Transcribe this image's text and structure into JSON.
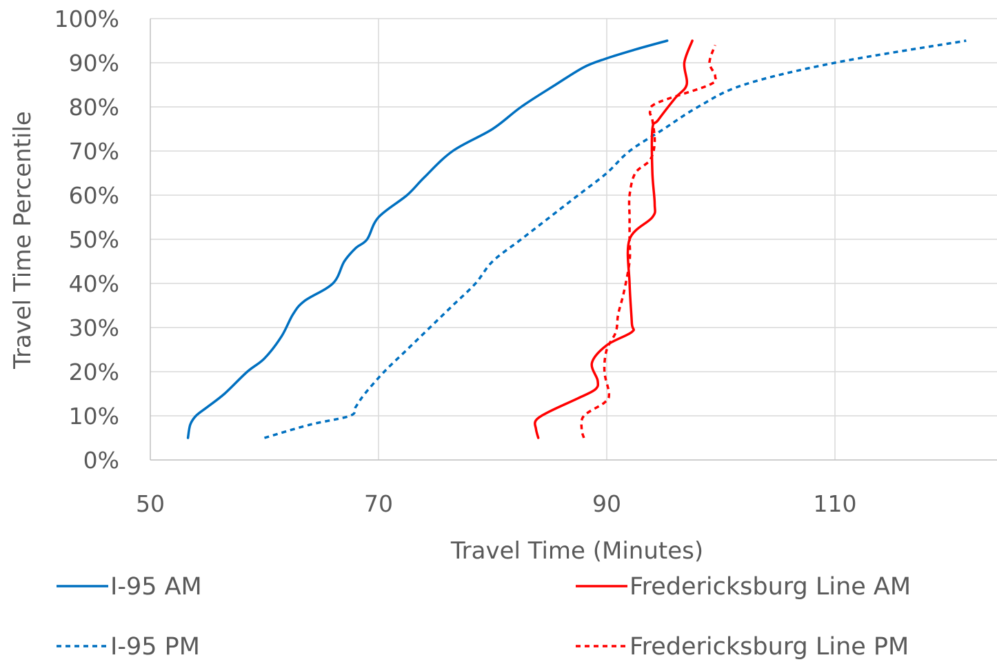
{
  "chart_data": {
    "type": "line",
    "xlabel": "Travel Time (Minutes)",
    "ylabel": "Travel Time Percentile",
    "xlim": [
      50,
      124
    ],
    "ylim": [
      0,
      1
    ],
    "x_ticks": [
      50,
      70,
      90,
      110
    ],
    "y_ticks": [
      0,
      0.1,
      0.2,
      0.3,
      0.4,
      0.5,
      0.6,
      0.7,
      0.8,
      0.9,
      1.0
    ],
    "x_tick_labels": [
      "50",
      "70",
      "90",
      "110"
    ],
    "y_tick_labels": [
      "0%",
      "10%",
      "20%",
      "30%",
      "40%",
      "50%",
      "60%",
      "70%",
      "80%",
      "90%",
      "100%"
    ],
    "grid": "vertical and horizontal",
    "legend_position": "bottom",
    "series": [
      {
        "name": "I-95 AM",
        "color": "#0070C0",
        "style": "solid",
        "points": [
          [
            53.3,
            0.05
          ],
          [
            53.5,
            0.08
          ],
          [
            54.0,
            0.1
          ],
          [
            55.0,
            0.12
          ],
          [
            56.5,
            0.15
          ],
          [
            58.5,
            0.2
          ],
          [
            60.0,
            0.23
          ],
          [
            61.5,
            0.28
          ],
          [
            62.5,
            0.33
          ],
          [
            63.5,
            0.36
          ],
          [
            66.0,
            0.4
          ],
          [
            67.0,
            0.45
          ],
          [
            68.0,
            0.48
          ],
          [
            69.0,
            0.5
          ],
          [
            70.0,
            0.55
          ],
          [
            72.5,
            0.6
          ],
          [
            74.0,
            0.64
          ],
          [
            76.5,
            0.7
          ],
          [
            80.0,
            0.75
          ],
          [
            82.5,
            0.8
          ],
          [
            85.5,
            0.85
          ],
          [
            88.0,
            0.89
          ],
          [
            90.0,
            0.91
          ],
          [
            92.5,
            0.93
          ],
          [
            95.3,
            0.95
          ]
        ]
      },
      {
        "name": "I-95 PM",
        "color": "#0070C0",
        "style": "dashed",
        "points": [
          [
            60.0,
            0.05
          ],
          [
            64.0,
            0.08
          ],
          [
            67.5,
            0.1
          ],
          [
            68.0,
            0.12
          ],
          [
            68.8,
            0.15
          ],
          [
            70.5,
            0.2
          ],
          [
            72.5,
            0.25
          ],
          [
            74.5,
            0.3
          ],
          [
            76.5,
            0.35
          ],
          [
            78.5,
            0.4
          ],
          [
            80.0,
            0.45
          ],
          [
            82.5,
            0.5
          ],
          [
            85.0,
            0.55
          ],
          [
            87.5,
            0.6
          ],
          [
            90.0,
            0.65
          ],
          [
            92.0,
            0.7
          ],
          [
            95.0,
            0.75
          ],
          [
            98.0,
            0.8
          ],
          [
            102.0,
            0.85
          ],
          [
            110.0,
            0.9
          ],
          [
            121.5,
            0.95
          ]
        ]
      },
      {
        "name": "Fredericksburg Line AM",
        "color": "#FF0000",
        "style": "solid",
        "points": [
          [
            84.0,
            0.05
          ],
          [
            83.8,
            0.07
          ],
          [
            83.8,
            0.09
          ],
          [
            85.0,
            0.11
          ],
          [
            87.5,
            0.14
          ],
          [
            89.0,
            0.16
          ],
          [
            89.2,
            0.18
          ],
          [
            88.7,
            0.22
          ],
          [
            90.0,
            0.26
          ],
          [
            92.2,
            0.29
          ],
          [
            92.2,
            0.31
          ],
          [
            92.0,
            0.4
          ],
          [
            92.0,
            0.5
          ],
          [
            94.0,
            0.55
          ],
          [
            94.2,
            0.58
          ],
          [
            94.0,
            0.65
          ],
          [
            94.0,
            0.75
          ],
          [
            94.5,
            0.77
          ],
          [
            96.0,
            0.82
          ],
          [
            97.0,
            0.85
          ],
          [
            96.8,
            0.9
          ],
          [
            97.5,
            0.95
          ]
        ]
      },
      {
        "name": "Fredericksburg Line PM",
        "color": "#FF0000",
        "style": "dashed",
        "points": [
          [
            88.0,
            0.05
          ],
          [
            87.8,
            0.07
          ],
          [
            88.0,
            0.1
          ],
          [
            89.8,
            0.13
          ],
          [
            90.2,
            0.15
          ],
          [
            89.8,
            0.2
          ],
          [
            90.0,
            0.25
          ],
          [
            90.8,
            0.29
          ],
          [
            91.0,
            0.33
          ],
          [
            91.5,
            0.38
          ],
          [
            92.0,
            0.45
          ],
          [
            92.0,
            0.5
          ],
          [
            92.0,
            0.55
          ],
          [
            92.0,
            0.6
          ],
          [
            92.5,
            0.65
          ],
          [
            93.8,
            0.68
          ],
          [
            94.2,
            0.72
          ],
          [
            94.0,
            0.77
          ],
          [
            93.8,
            0.79
          ],
          [
            94.5,
            0.81
          ],
          [
            99.0,
            0.85
          ],
          [
            99.5,
            0.87
          ],
          [
            99.0,
            0.9
          ],
          [
            99.5,
            0.94
          ]
        ]
      }
    ]
  }
}
